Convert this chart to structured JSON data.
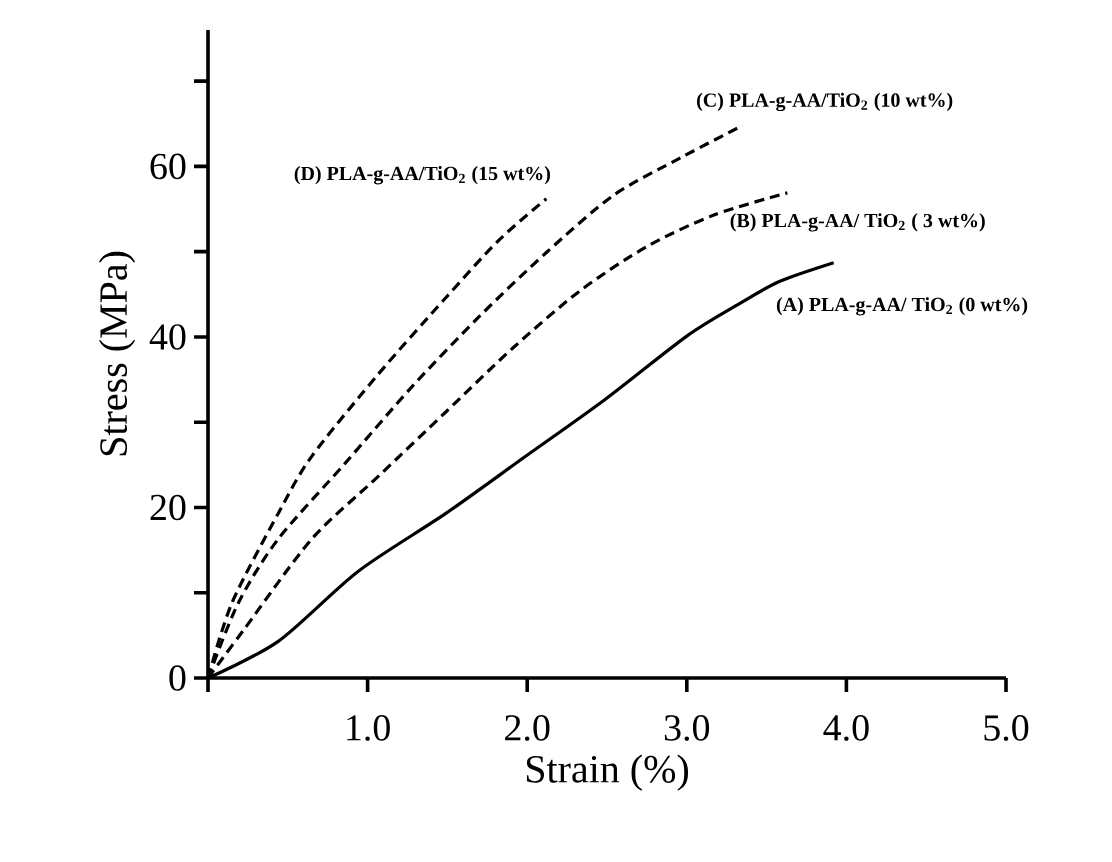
{
  "chart_data": {
    "type": "line",
    "xlabel": "Strain (%)",
    "ylabel": "Stress (MPa)",
    "xlim": [
      0,
      5
    ],
    "ylim": [
      0,
      76
    ],
    "xticks": [
      {
        "value": 0,
        "label": null
      },
      {
        "value": 1,
        "label": "1.0"
      },
      {
        "value": 2,
        "label": "2.0"
      },
      {
        "value": 3,
        "label": "3.0"
      },
      {
        "value": 4,
        "label": "4.0"
      },
      {
        "value": 5,
        "label": "5.0"
      }
    ],
    "yticks": [
      0,
      {
        "value": 10,
        "label": null
      },
      20,
      {
        "value": 30,
        "label": null
      },
      40,
      {
        "value": 50,
        "label": null
      },
      60,
      {
        "value": 70,
        "label": null
      }
    ],
    "marker": "none",
    "series": [
      {
        "name": "(A) PLA-g-AA/ TiO$_{2}$ (0 wt%)",
        "color": "#000000",
        "line_style": "solid",
        "x": [
          0,
          0.44,
          0.94,
          1.49,
          1.99,
          2.49,
          3.0,
          3.33,
          3.58,
          3.92
        ],
        "values": [
          0,
          4.3,
          12.5,
          19.3,
          26,
          32.7,
          40.1,
          43.9,
          46.5,
          48.7
        ]
      },
      {
        "name": "(B) PLA-g-AA/ TiO$_{2}$ ( 3 wt%)",
        "color": "#000000",
        "line_style": "dashed",
        "x": [
          0,
          0.23,
          0.65,
          1.07,
          1.49,
          1.91,
          2.33,
          2.75,
          3.17,
          3.63
        ],
        "values": [
          0,
          5.8,
          16.3,
          23.7,
          31.2,
          38.7,
          45.4,
          50.6,
          54.3,
          56.9
        ]
      },
      {
        "name": "(C) PLA-g-AA/TiO$_{2}$ (10 wt%)",
        "color": "#000000",
        "line_style": "dashed",
        "x": [
          0,
          0.19,
          0.44,
          0.86,
          1.28,
          1.7,
          2.12,
          2.54,
          2.96,
          3.35
        ],
        "values": [
          0,
          8.8,
          16.3,
          25.2,
          34.2,
          42.4,
          49.9,
          56.6,
          61,
          64.8
        ]
      },
      {
        "name": "(D) PLA-g-AA/TiO$_{2}$ (15 wt%)",
        "color": "#000000",
        "line_style": "dashed",
        "x": [
          0,
          0.15,
          0.44,
          0.65,
          1.07,
          1.49,
          1.82,
          2.12
        ],
        "values": [
          0,
          8.8,
          19.3,
          26,
          35.7,
          44.6,
          51.3,
          56.2
        ]
      }
    ]
  }
}
